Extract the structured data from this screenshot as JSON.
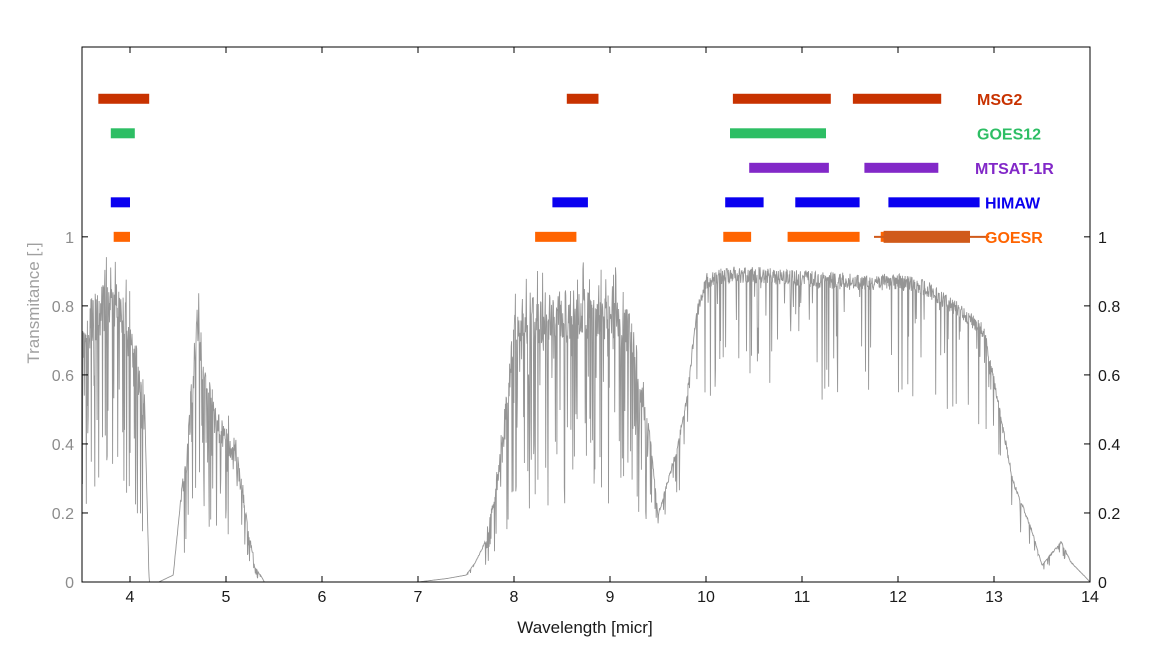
{
  "chart_data": {
    "type": "line",
    "title": "",
    "xlabel": "Wavelength [micr]",
    "ylabel": "Transmitance [.]",
    "xlim": [
      3.5,
      14
    ],
    "ylim": [
      0,
      1.55
    ],
    "grid": false,
    "x_ticks": [
      4,
      5,
      6,
      7,
      8,
      9,
      10,
      11,
      12,
      13,
      14
    ],
    "y_ticks_left": [
      0,
      0.2,
      0.4,
      0.6,
      0.8,
      1
    ],
    "y_ticks_right": [
      0,
      0.2,
      0.4,
      0.6,
      0.8,
      1
    ],
    "transmittance_color": "#959595",
    "transmittance_envelope": {
      "x": [
        3.5,
        3.7,
        3.9,
        4.0,
        4.1,
        4.15,
        4.2,
        4.3,
        4.45,
        4.6,
        4.7,
        4.8,
        4.9,
        5.0,
        5.1,
        5.2,
        5.3,
        5.4,
        5.6,
        6.0,
        7.0,
        7.3,
        7.5,
        7.6,
        7.7,
        7.8,
        7.9,
        8.0,
        8.1,
        8.3,
        8.6,
        9.0,
        9.2,
        9.3,
        9.4,
        9.5,
        9.6,
        9.7,
        9.8,
        9.9,
        10.0,
        10.2,
        10.5,
        11.0,
        11.5,
        12.0,
        12.3,
        12.5,
        12.7,
        12.9,
        13.0,
        13.1,
        13.2,
        13.4,
        13.5,
        13.7,
        13.8,
        13.9,
        14.0
      ],
      "y": [
        0.86,
        0.95,
        0.96,
        0.85,
        0.7,
        0.55,
        0.0,
        0.0,
        0.02,
        0.45,
        0.92,
        0.7,
        0.55,
        0.5,
        0.45,
        0.25,
        0.05,
        0.0,
        0.0,
        0.0,
        0.0,
        0.01,
        0.02,
        0.06,
        0.12,
        0.3,
        0.5,
        0.88,
        0.92,
        0.92,
        0.93,
        0.93,
        0.87,
        0.72,
        0.48,
        0.2,
        0.3,
        0.4,
        0.55,
        0.8,
        0.9,
        0.92,
        0.92,
        0.91,
        0.9,
        0.9,
        0.88,
        0.84,
        0.8,
        0.75,
        0.6,
        0.45,
        0.3,
        0.15,
        0.05,
        0.12,
        0.06,
        0.03,
        0.0
      ]
    },
    "series": [
      {
        "name": "MSG2",
        "color": "#c83200",
        "level": 1.4,
        "bands": [
          [
            3.67,
            4.2
          ],
          [
            8.55,
            8.88
          ],
          [
            10.28,
            11.3
          ],
          [
            11.53,
            12.45
          ]
        ]
      },
      {
        "name": "GOES12",
        "color": "#2dbe64",
        "level": 1.3,
        "bands": [
          [
            3.8,
            4.05
          ],
          [
            10.25,
            11.25
          ]
        ]
      },
      {
        "name": "MTSAT-1R",
        "color": "#8228c8",
        "level": 1.2,
        "bands": [
          [
            10.45,
            11.28
          ],
          [
            11.65,
            12.42
          ]
        ]
      },
      {
        "name": "HIMAW",
        "color": "#0a00f0",
        "level": 1.1,
        "bands": [
          [
            3.8,
            4.0
          ],
          [
            8.4,
            8.77
          ],
          [
            10.2,
            10.6
          ],
          [
            10.93,
            11.6
          ],
          [
            11.9,
            12.85
          ]
        ]
      },
      {
        "name": "GOESR",
        "color": "#ff6400",
        "level": 1.0,
        "bands": [
          [
            3.83,
            4.0
          ],
          [
            8.22,
            8.65
          ],
          [
            10.18,
            10.47
          ],
          [
            10.85,
            11.6
          ],
          [
            11.82,
            12.72
          ]
        ]
      }
    ],
    "extra_band": {
      "color": "#d05a1a",
      "level": 1.0,
      "range": [
        11.85,
        12.75
      ],
      "whisker": [
        11.75,
        12.95
      ]
    }
  }
}
